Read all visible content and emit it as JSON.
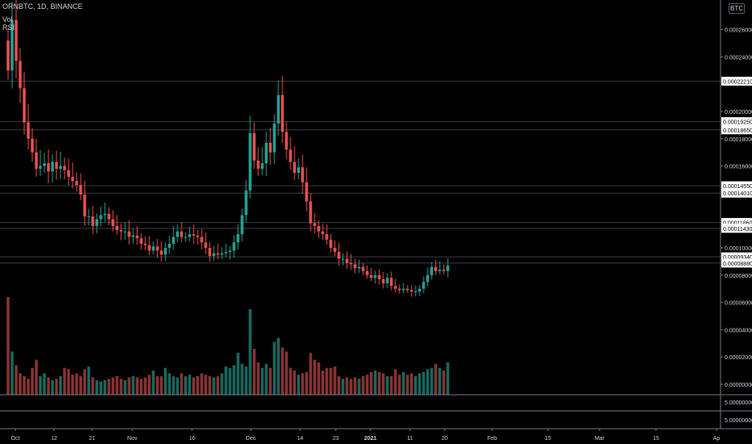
{
  "header": {
    "title": "ORNBTC, 1D, BINANCE",
    "vol_label": "Vol",
    "rsi_label": "RSI"
  },
  "currency_badge": "BTC",
  "colors": {
    "background": "#000000",
    "up": "#26a69a",
    "down": "#ef5350",
    "vol_up": "#1b6b63",
    "vol_down": "#8d3535",
    "line": "#3a3d45"
  },
  "chart_data": {
    "type": "candlestick",
    "y_ticks": [
      "0.00026000",
      "0.00024000",
      "0.00020000",
      "0.00018000",
      "0.00016000",
      "0.00010000",
      "0.00008000",
      "0.00006000",
      "0.00004000",
      "0.00002000",
      "0.00000000"
    ],
    "levels": [
      "0.00022210",
      "0.00019250",
      "0.00018650",
      "0.00014550",
      "0.00014010",
      "0.00011860",
      "0.00011430",
      "0.00009340",
      "0.00008880"
    ],
    "rsi_ticks": [
      "5.00000000",
      "5.00000000"
    ],
    "x_ticks": [
      "Oct",
      "12",
      "21",
      "Nov",
      "16",
      "Dec",
      "14",
      "23",
      "2021",
      "11",
      "20",
      "Feb",
      "15",
      "Mar",
      "15",
      "Ap"
    ],
    "closes": [
      0.00023,
      0.000267,
      0.000237,
      0.000217,
      0.000192,
      0.00018,
      0.00017,
      0.000158,
      0.00016,
      0.000162,
      0.000156,
      0.000163,
      0.000158,
      0.00016,
      0.000157,
      0.000152,
      0.000149,
      0.000146,
      0.000139,
      0.000123,
      0.000123,
      0.000116,
      0.000121,
      0.000124,
      0.000125,
      0.000121,
      0.000116,
      0.000113,
      0.000112,
      0.000112,
      0.000108,
      0.000109,
      0.000107,
      0.000103,
      0.000102,
      9.8e-05,
      0.000101,
      9.8e-05,
      9.5e-05,
      0.0001,
      0.000103,
      0.000108,
      0.000112,
      0.000108,
      0.000108,
      0.00011,
      0.000109,
      0.000108,
      0.000104,
      0.0001,
      9.4e-05,
      9.6e-05,
      9.5e-05,
      9.6e-05,
      9.7e-05,
      9.8e-05,
      0.000104,
      0.00011,
      0.000124,
      0.000142,
      0.000184,
      0.000164,
      0.000158,
      0.000162,
      0.000177,
      0.00017,
      0.000191,
      0.000212,
      0.000185,
      0.000172,
      0.000163,
      0.000155,
      0.000159,
      0.000148,
      0.000134,
      0.000118,
      0.000116,
      0.000112,
      0.00011,
      0.000106,
      0.0001,
      9.7e-05,
      9.2e-05,
      9.2e-05,
      8.9e-05,
      8.8e-05,
      8.5e-05,
      8.6e-05,
      8.3e-05,
      8e-05,
      7.8e-05,
      8e-05,
      7.7e-05,
      7.4e-05,
      7.8e-05,
      7.2e-05,
      7e-05,
      6.9e-05,
      7e-05,
      6.9e-05,
      6.8e-05,
      6.8e-05,
      7e-05,
      7.5e-05,
      8e-05,
      8.6e-05,
      8.3e-05,
      8.4e-05,
      8.3e-05,
      8.7e-05
    ],
    "volumes": [
      6.4e-05,
      2.4e-05,
      1.4e-05,
      8e-06,
      6e-06,
      4e-06,
      1.2e-05,
      1.8e-05,
      6e-06,
      8e-06,
      5e-06,
      3e-06,
      4e-06,
      6e-06,
      1.2e-05,
      1.1e-05,
      7e-06,
      8e-06,
      6e-06,
      1.1e-05,
      1.3e-05,
      5e-06,
      3e-06,
      2e-06,
      3e-06,
      4e-06,
      5e-06,
      6e-06,
      4e-06,
      3e-06,
      5e-06,
      6e-06,
      5e-06,
      4e-06,
      5e-06,
      7e-06,
      1e-05,
      6e-06,
      6e-06,
      1.2e-05,
      8e-06,
      6e-06,
      5e-06,
      8e-06,
      6e-06,
      7e-06,
      5e-06,
      6e-06,
      8e-06,
      7e-06,
      6e-06,
      5e-06,
      6e-06,
      8e-06,
      1.3e-05,
      1.2e-05,
      1.4e-05,
      2.3e-05,
      1.5e-05,
      1.3e-05,
      5.5e-05,
      2.6e-05,
      1.6e-05,
      1.2e-05,
      1.5e-05,
      1.2e-05,
      3.1e-05,
      3.4e-05,
      2.7e-05,
      2.4e-05,
      1.2e-05,
      1e-05,
      7e-06,
      8e-06,
      9e-06,
      2.3e-05,
      1.8e-05,
      1.6e-05,
      1e-05,
      1.2e-05,
      1.2e-05,
      1.3e-05,
      6e-06,
      4e-06,
      5e-06,
      4e-06,
      5e-06,
      4e-06,
      6e-06,
      7e-06,
      9e-06,
      1e-05,
      9e-06,
      8e-06,
      6e-06,
      6e-06,
      1.1e-05,
      7e-06,
      9e-06,
      7e-06,
      8e-06,
      6e-06,
      8e-06,
      9e-06,
      1.1e-05,
      1.2e-05,
      1.5e-05,
      1.2e-05,
      1e-05,
      1.6e-05
    ]
  }
}
